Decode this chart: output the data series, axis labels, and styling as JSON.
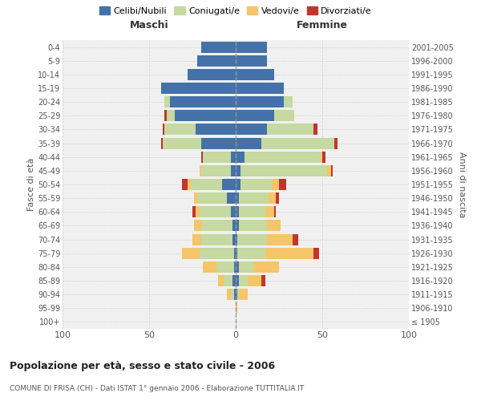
{
  "age_groups": [
    "100+",
    "95-99",
    "90-94",
    "85-89",
    "80-84",
    "75-79",
    "70-74",
    "65-69",
    "60-64",
    "55-59",
    "50-54",
    "45-49",
    "40-44",
    "35-39",
    "30-34",
    "25-29",
    "20-24",
    "15-19",
    "10-14",
    "5-9",
    "0-4"
  ],
  "birth_years": [
    "≤ 1905",
    "1906-1910",
    "1911-1915",
    "1916-1920",
    "1921-1925",
    "1926-1930",
    "1931-1935",
    "1936-1940",
    "1941-1945",
    "1946-1950",
    "1951-1955",
    "1956-1960",
    "1961-1965",
    "1966-1970",
    "1971-1975",
    "1976-1980",
    "1981-1985",
    "1986-1990",
    "1991-1995",
    "1996-2000",
    "2001-2005"
  ],
  "maschi": {
    "celibi": [
      0,
      0,
      1,
      2,
      1,
      1,
      2,
      2,
      3,
      5,
      8,
      3,
      3,
      20,
      23,
      35,
      38,
      43,
      28,
      22,
      20
    ],
    "coniugati": [
      0,
      0,
      2,
      5,
      10,
      20,
      18,
      18,
      18,
      17,
      18,
      17,
      16,
      22,
      18,
      5,
      3,
      0,
      0,
      0,
      0
    ],
    "vedovi": [
      0,
      0,
      2,
      3,
      8,
      10,
      5,
      4,
      2,
      2,
      2,
      1,
      0,
      0,
      0,
      0,
      0,
      0,
      0,
      0,
      0
    ],
    "divorziati": [
      0,
      0,
      0,
      0,
      0,
      0,
      0,
      0,
      2,
      0,
      3,
      0,
      1,
      1,
      1,
      1,
      0,
      0,
      0,
      0,
      0
    ]
  },
  "femmine": {
    "nubili": [
      0,
      0,
      1,
      2,
      2,
      1,
      1,
      2,
      2,
      2,
      3,
      3,
      5,
      15,
      18,
      22,
      28,
      28,
      22,
      18,
      18
    ],
    "coniugate": [
      0,
      0,
      1,
      5,
      8,
      16,
      17,
      16,
      15,
      17,
      18,
      50,
      44,
      42,
      27,
      12,
      5,
      0,
      0,
      0,
      0
    ],
    "vedove": [
      0,
      1,
      5,
      8,
      15,
      28,
      15,
      8,
      5,
      4,
      4,
      2,
      1,
      0,
      0,
      0,
      0,
      0,
      0,
      0,
      0
    ],
    "divorziate": [
      0,
      0,
      0,
      2,
      0,
      3,
      3,
      0,
      1,
      2,
      4,
      1,
      2,
      2,
      2,
      0,
      0,
      0,
      0,
      0,
      0
    ]
  },
  "colors": {
    "celibi": "#4472a8",
    "coniugati": "#c5d9a0",
    "vedovi": "#f5c56a",
    "divorziati": "#c0362c"
  },
  "legend_labels": [
    "Celibi/Nubili",
    "Coniugati/e",
    "Vedovi/e",
    "Divorziati/e"
  ],
  "title1": "Popolazione per età, sesso e stato civile - 2006",
  "title2": "COMUNE DI FRISA (CH) - Dati ISTAT 1° gennaio 2006 - Elaborazione TUTTITALIA.IT",
  "xlabel_left": "Maschi",
  "xlabel_right": "Femmine",
  "ylabel_left": "Fasce di età",
  "ylabel_right": "Anni di nascita",
  "xlim": 100,
  "background_color": "#ffffff",
  "plot_bg_color": "#f0f0f0",
  "grid_color": "#cccccc"
}
